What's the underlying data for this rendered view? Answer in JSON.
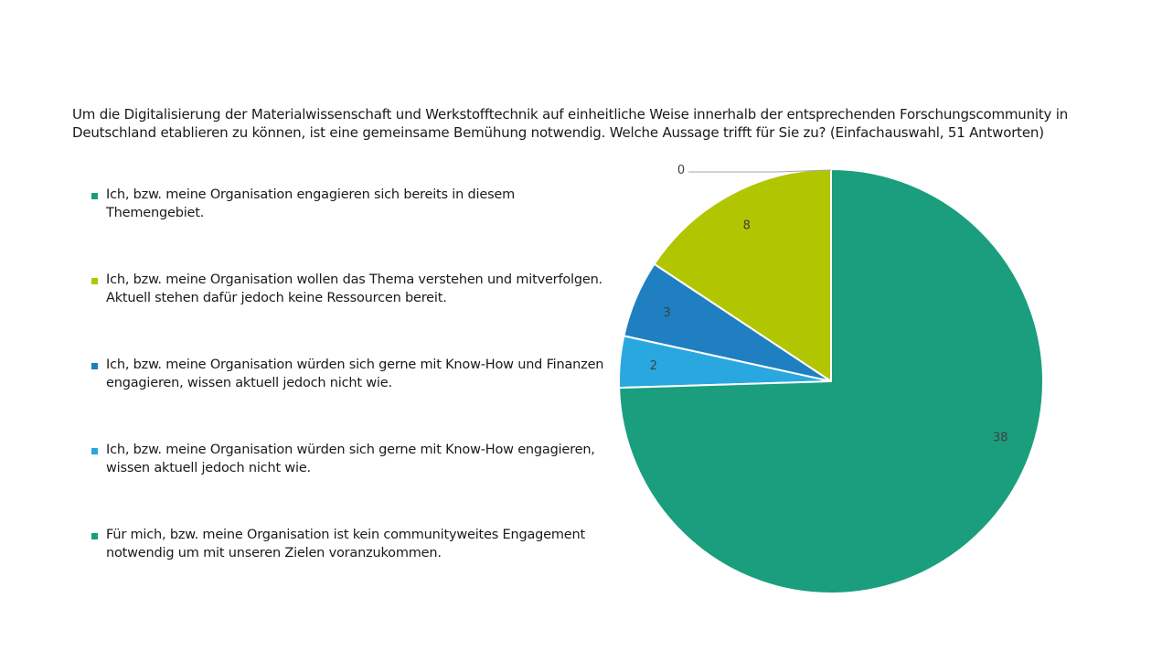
{
  "chart_data": {
    "type": "pie",
    "title": "Um die Digitalisierung der Materialwissenschaft und Werkstofftechnik auf einheitliche Weise innerhalb der entsprechenden Forschungscommunity in Deutschland etablieren zu können, ist eine gemeinsame Bemühung notwendig. Welche Aussage trifft für Sie zu? (Einfachauswahl, 51 Antworten)",
    "legend_position": "left",
    "series": [
      {
        "slices": [
          {
            "label": "Ich, bzw. meine Organisation engagieren sich bereits in diesem Themengebiet.",
            "value": 0,
            "color": "#1a9e7e"
          },
          {
            "label": "Ich, bzw. meine Organisation wollen das Thema verstehen und mitverfolgen. Aktuell stehen dafür jedoch keine Ressourcen bereit.",
            "value": 8,
            "color": "#b1c600"
          },
          {
            "label": "Ich, bzw. meine Organisation würden sich gerne mit Know-How und Finanzen engagieren, wissen aktuell jedoch nicht wie.",
            "value": 3,
            "color": "#1f7fc1"
          },
          {
            "label": "Ich, bzw. meine Organisation würden sich gerne mit Know-How engagieren, wissen aktuell jedoch nicht wie.",
            "value": 2,
            "color": "#29a8e0"
          },
          {
            "label": "Für mich, bzw. meine Organisation ist kein communityweites Engagement notwendig um mit unseren Zielen voranzukommen.",
            "value": 38,
            "color": "#1a9e7e"
          }
        ]
      }
    ]
  }
}
